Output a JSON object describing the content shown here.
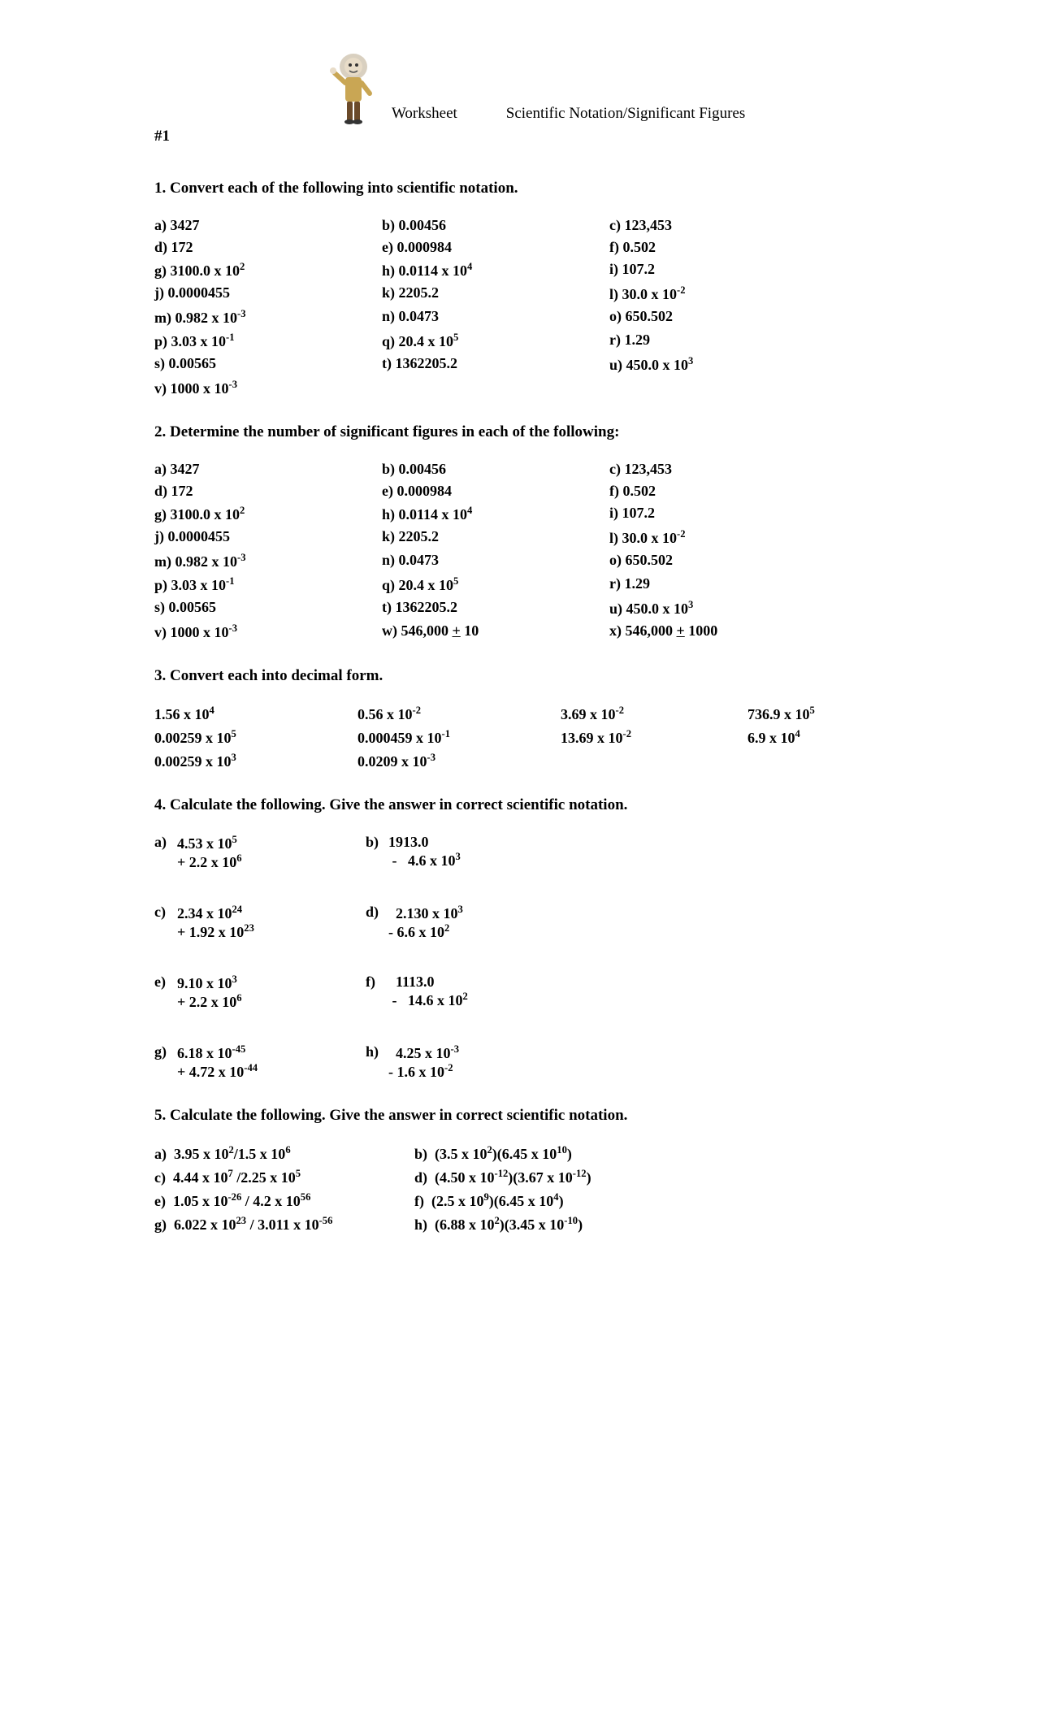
{
  "header": {
    "worksheet_label": "Worksheet",
    "topic": "Scientific Notation/Significant Figures",
    "page_number": "#1"
  },
  "section1": {
    "title": "1. Convert each of the following into scientific notation.",
    "items": [
      {
        "l": "a)",
        "v": "3427"
      },
      {
        "l": "b)",
        "v": "0.00456"
      },
      {
        "l": "c)",
        "v": "123,453"
      },
      {
        "l": "d)",
        "v": "172"
      },
      {
        "l": "e)",
        "v": "0.000984"
      },
      {
        "l": "f)",
        "v": "0.502"
      },
      {
        "l": "g)",
        "v_html": "3100.0 x 10<sup>2</sup>"
      },
      {
        "l": "h)",
        "v_html": "0.0114 x 10<sup>4</sup>"
      },
      {
        "l": "i)",
        "v": "107.2"
      },
      {
        "l": "j)",
        "v": "0.0000455"
      },
      {
        "l": "k)",
        "v": "2205.2"
      },
      {
        "l": "l)",
        "v_html": "30.0 x 10<sup>-2</sup>"
      },
      {
        "l": "m)",
        "v_html": "0.982 x 10<sup>-3</sup>"
      },
      {
        "l": "n)",
        "v": "0.0473"
      },
      {
        "l": "o)",
        "v": "650.502"
      },
      {
        "l": "p)",
        "v_html": "3.03 x 10<sup>-1</sup>"
      },
      {
        "l": "q)",
        "v_html": "20.4 x 10<sup>5</sup>"
      },
      {
        "l": "r)",
        "v": "1.29"
      },
      {
        "l": "s)",
        "v": "0.00565"
      },
      {
        "l": "t)",
        "v": "1362205.2"
      },
      {
        "l": "u)",
        "v_html": "450.0 x 10<sup>3</sup>"
      },
      {
        "l": "v)",
        "v_html": "1000 x 10<sup>-3</sup>"
      },
      {
        "l": "",
        "v": ""
      },
      {
        "l": "",
        "v": ""
      }
    ]
  },
  "section2": {
    "title": "2. Determine the number of significant figures in each of the following:",
    "items": [
      {
        "l": "a)",
        "v": "3427"
      },
      {
        "l": "b)",
        "v": "0.00456"
      },
      {
        "l": "c)",
        "v": "123,453"
      },
      {
        "l": "d)",
        "v": "172"
      },
      {
        "l": "e)",
        "v": "0.000984"
      },
      {
        "l": "f)",
        "v": "0.502"
      },
      {
        "l": "g)",
        "v_html": "3100.0 x 10<sup>2</sup>"
      },
      {
        "l": "h)",
        "v_html": "0.0114 x 10<sup>4</sup>"
      },
      {
        "l": "i)",
        "v": "107.2"
      },
      {
        "l": "j)",
        "v": "0.0000455"
      },
      {
        "l": "k)",
        "v": "2205.2"
      },
      {
        "l": "l)",
        "v_html": "30.0 x 10<sup>-2</sup>"
      },
      {
        "l": "m)",
        "v_html": "0.982 x 10<sup>-3</sup>"
      },
      {
        "l": "n)",
        "v": "0.0473"
      },
      {
        "l": "o)",
        "v": "650.502"
      },
      {
        "l": "p)",
        "v_html": "3.03 x 10<sup>-1</sup>"
      },
      {
        "l": "q)",
        "v_html": "20.4 x 10<sup>5</sup>"
      },
      {
        "l": "r)",
        "v": "1.29"
      },
      {
        "l": "s)",
        "v": "0.00565"
      },
      {
        "l": "t)",
        "v": "1362205.2"
      },
      {
        "l": "u)",
        "v_html": "450.0 x 10<sup>3</sup>"
      },
      {
        "l": "v)",
        "v_html": "1000 x 10<sup>-3</sup>"
      },
      {
        "l": "w)",
        "v_html": "546,000 <span class='pm'>+</span> 10"
      },
      {
        "l": "x)",
        "v_html": "546,000 <span class='pm'>+</span> 1000"
      }
    ]
  },
  "section3": {
    "title": "3. Convert each into decimal form.",
    "items": [
      {
        "v_html": "1.56 x 10<sup>4</sup>"
      },
      {
        "v_html": "0.56 x 10<sup>-2</sup>"
      },
      {
        "v_html": "3.69 x 10<sup>-2</sup>"
      },
      {
        "v_html": "736.9 x 10<sup>5</sup>"
      },
      {
        "v_html": "0.00259 x 10<sup>5</sup>"
      },
      {
        "v_html": "0.000459 x 10<sup>-1</sup>"
      },
      {
        "v_html": "13.69 x 10<sup>-2</sup>"
      },
      {
        "v_html": "6.9 x 10<sup>4</sup>"
      },
      {
        "v_html": "0.00259 x 10<sup>3</sup>"
      },
      {
        "v_html": "0.0209 x 10<sup>-3</sup>"
      },
      {
        "v_html": ""
      },
      {
        "v_html": ""
      }
    ]
  },
  "section4": {
    "title": "4. Calculate the following.  Give the answer in correct scientific notation.",
    "pairs": [
      {
        "l": "a)",
        "line1_html": "4.53 x 10<sup>5</sup>",
        "line2_html": "+ 2.2 x 10<sup>6</sup>"
      },
      {
        "l": "b)",
        "line1_html": "1913.0",
        "line2_html": "&nbsp;-&nbsp;&nbsp;&nbsp;4.6 x 10<sup>3</sup>"
      },
      {
        "l": "c)",
        "line1_html": "2.34 x 10<sup>24</sup>",
        "line2_html": "+ 1.92 x 10<sup>23</sup>"
      },
      {
        "l": "d)",
        "line1_html": "&nbsp;&nbsp;2.130 x 10<sup>3</sup>",
        "line2_html": "- 6.6 x 10<sup>2</sup>"
      },
      {
        "l": "e)",
        "line1_html": "9.10 x 10<sup>3</sup>",
        "line2_html": "+ 2.2 x 10<sup>6</sup>"
      },
      {
        "l": "f)",
        "line1_html": "&nbsp;&nbsp;1113.0",
        "line2_html": "&nbsp;-&nbsp;&nbsp;&nbsp;14.6 x 10<sup>2</sup>"
      },
      {
        "l": "g)",
        "line1_html": "6.18 x 10<sup>-45</sup>",
        "line2_html": "+ 4.72 x 10<sup>-44</sup>"
      },
      {
        "l": "h)",
        "line1_html": "&nbsp;&nbsp;4.25 x 10<sup>-3</sup>",
        "line2_html": "- 1.6 x 10<sup>-2</sup>"
      }
    ]
  },
  "section5": {
    "title": "5. Calculate the following.  Give the answer in correct scientific notation.",
    "items": [
      {
        "l": "a)",
        "v_html": "3.95 x 10<sup>2</sup>/1.5 x 10<sup>6</sup>"
      },
      {
        "l": "b)",
        "v_html": "(3.5 x 10<sup>2</sup>)(6.45 x 10<sup>10</sup>)"
      },
      {
        "l": "c)",
        "v_html": "4.44 x 10<sup>7</sup> /2.25 x 10<sup>5</sup>"
      },
      {
        "l": "d)",
        "v_html": "(4.50 x 10<sup>-12</sup>)(3.67 x 10<sup>-12</sup>)"
      },
      {
        "l": "e)",
        "v_html": "1.05 x 10<sup>-26</sup> /  4.2 x 10<sup>56</sup>"
      },
      {
        "l": "f)",
        "v_html": "(2.5 x 10<sup>9</sup>)(6.45 x 10<sup>4</sup>)"
      },
      {
        "l": "g)",
        "v_html": "6.022 x 10<sup>23</sup> / 3.011 x 10<sup>-56</sup>"
      },
      {
        "l": "h)",
        "v_html": "(6.88 x 10<sup>2</sup>)(3.45 x 10<sup>-10</sup>)"
      }
    ]
  },
  "colors": {
    "text": "#000000",
    "background": "#ffffff"
  }
}
